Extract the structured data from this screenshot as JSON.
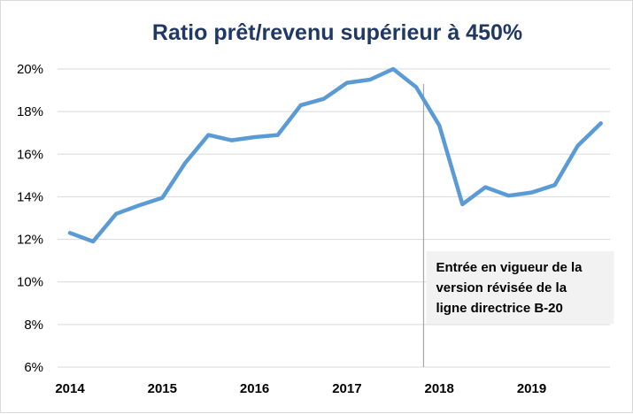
{
  "chart_data": {
    "type": "line",
    "title": "Ratio prêt/revenu supérieur à 450%",
    "xlabel": "",
    "ylabel": "",
    "ylim": [
      6,
      20
    ],
    "yticks": [
      "20%",
      "18%",
      "16%",
      "14%",
      "12%",
      "10%",
      "8%",
      "6%"
    ],
    "ytick_values": [
      20,
      18,
      16,
      14,
      12,
      10,
      8,
      6
    ],
    "xticks": [
      "2014",
      "2015",
      "2016",
      "2017",
      "2018",
      "2019"
    ],
    "grid": true,
    "legend": "none",
    "colors": {
      "series": "#5b9bd5",
      "title": "#1f3864",
      "grid": "#d9d9d9",
      "annotation_bg": "#f2f2f2"
    },
    "series": [
      {
        "values": [
          {
            "x": 2014.0,
            "y": 12.3
          },
          {
            "x": 2014.25,
            "y": 11.9
          },
          {
            "x": 2014.5,
            "y": 13.2
          },
          {
            "x": 2014.75,
            "y": 13.6
          },
          {
            "x": 2015.0,
            "y": 13.95
          },
          {
            "x": 2015.25,
            "y": 15.6
          },
          {
            "x": 2015.5,
            "y": 16.9
          },
          {
            "x": 2015.75,
            "y": 16.65
          },
          {
            "x": 2016.0,
            "y": 16.8
          },
          {
            "x": 2016.25,
            "y": 16.9
          },
          {
            "x": 2016.5,
            "y": 18.3
          },
          {
            "x": 2016.75,
            "y": 18.6
          },
          {
            "x": 2017.0,
            "y": 19.35
          },
          {
            "x": 2017.25,
            "y": 19.5
          },
          {
            "x": 2017.5,
            "y": 20.0
          },
          {
            "x": 2017.75,
            "y": 19.15
          },
          {
            "x": 2018.0,
            "y": 17.35
          },
          {
            "x": 2018.25,
            "y": 13.65
          },
          {
            "x": 2018.5,
            "y": 14.45
          },
          {
            "x": 2018.75,
            "y": 14.05
          },
          {
            "x": 2019.0,
            "y": 14.2
          },
          {
            "x": 2019.25,
            "y": 14.55
          },
          {
            "x": 2019.5,
            "y": 16.4
          },
          {
            "x": 2019.75,
            "y": 17.45
          }
        ]
      }
    ],
    "annotation": {
      "x": 2017.83,
      "lines": [
        "Entrée en vigueur de la",
        "version révisée de la",
        "ligne directrice B-20"
      ]
    }
  }
}
